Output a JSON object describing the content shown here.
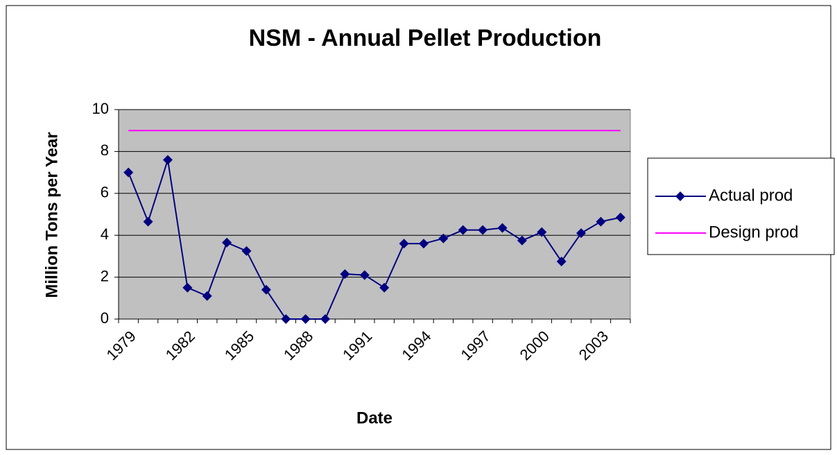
{
  "chart_data": {
    "type": "line",
    "title": "NSM - Annual Pellet Production",
    "x_label": "Date",
    "y_label": "Million Tons per Year",
    "categories": [
      "1979",
      null,
      null,
      "1982",
      null,
      null,
      "1985",
      null,
      null,
      "1988",
      null,
      null,
      "1991",
      null,
      null,
      "1994",
      null,
      null,
      "1997",
      null,
      null,
      "2000",
      null,
      null,
      "2003",
      null
    ],
    "series": [
      {
        "name": "Actual prod",
        "color": "#000080",
        "values": [
          7.0,
          4.65,
          7.6,
          1.5,
          1.1,
          3.65,
          3.25,
          1.4,
          0,
          0,
          0,
          2.15,
          2.1,
          1.5,
          3.6,
          3.6,
          3.85,
          4.25,
          4.25,
          4.35,
          3.75,
          4.15,
          2.75,
          4.1,
          4.65,
          4.85
        ]
      },
      {
        "name": "Design prod",
        "color": "#ff00ff",
        "values": [
          9,
          9,
          9,
          9,
          9,
          9,
          9,
          9,
          9,
          9,
          9,
          9,
          9,
          9,
          9,
          9,
          9,
          9,
          9,
          9,
          9,
          9,
          9,
          9,
          9,
          9
        ]
      }
    ],
    "ylim": [
      0,
      10
    ],
    "yticks": [
      0,
      2,
      4,
      6,
      8,
      10
    ],
    "grid": true,
    "plot_background": "#c0c0c0",
    "legend": "right"
  }
}
